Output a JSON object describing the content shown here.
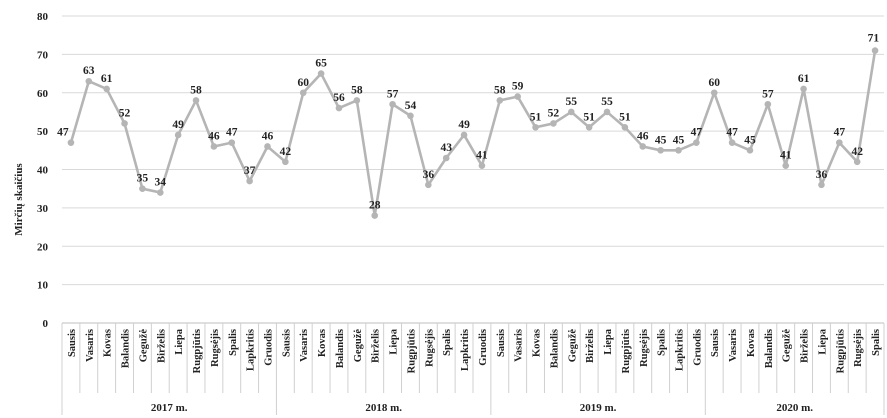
{
  "chart_data": {
    "type": "line",
    "ylabel": "Mirčių skaičius",
    "ylim": [
      0,
      80
    ],
    "yticks": [
      0,
      10,
      20,
      30,
      40,
      50,
      60,
      70,
      80
    ],
    "grid": true,
    "line_color": "#b5b5b5",
    "categories": [
      "Sausis",
      "Vasaris",
      "Kovas",
      "Balandis",
      "Gegužė",
      "Birželis",
      "Liepa",
      "Rugpjūtis",
      "Rugsėjis",
      "Spalis",
      "Lapkritis",
      "Gruodis",
      "Sausis",
      "Vasaris",
      "Kovas",
      "Balandis",
      "Gegužė",
      "Birželis",
      "Liepa",
      "Rugpjūtis",
      "Rugsėjis",
      "Spalis",
      "Lapkritis",
      "Gruodis",
      "Sausis",
      "Vasaris",
      "Kovas",
      "Balandis",
      "Gegužė",
      "Birželis",
      "Liepa",
      "Rugpjūtis",
      "Rugsėjis",
      "Spalis",
      "Lapkritis",
      "Gruodis",
      "Sausis",
      "Vasaris",
      "Kovas",
      "Balandis",
      "Gegužė",
      "Birželis",
      "Liepa",
      "Rugpjūtis",
      "Rugsėjis",
      "Spalis"
    ],
    "groups": [
      {
        "label": "2017 m.",
        "count": 12
      },
      {
        "label": "2018 m.",
        "count": 12
      },
      {
        "label": "2019 m.",
        "count": 12
      },
      {
        "label": "2020 m.",
        "count": 10
      }
    ],
    "values": [
      47,
      63,
      61,
      52,
      35,
      34,
      49,
      58,
      46,
      47,
      37,
      46,
      42,
      60,
      65,
      56,
      58,
      28,
      57,
      54,
      36,
      43,
      49,
      41,
      58,
      59,
      51,
      52,
      55,
      51,
      55,
      51,
      46,
      45,
      45,
      47,
      60,
      47,
      45,
      57,
      41,
      61,
      36,
      47,
      42,
      71
    ]
  }
}
